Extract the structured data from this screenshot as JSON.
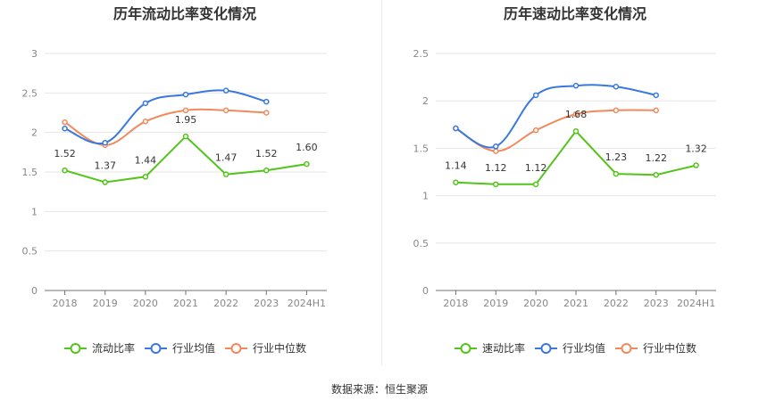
{
  "source_text": "数据来源：恒生聚源",
  "chart_data": [
    {
      "type": "line",
      "title": "历年流动比率变化情况",
      "categories": [
        "2018",
        "2019",
        "2020",
        "2021",
        "2022",
        "2023",
        "2024H1"
      ],
      "y_ticks": [
        "0",
        "0.5",
        "1",
        "1.5",
        "2",
        "2.5",
        "3"
      ],
      "ylim": [
        0,
        3
      ],
      "grid": true,
      "legend_position": "bottom",
      "series": [
        {
          "name": "流动比率",
          "color": "#52c41a",
          "values": [
            1.52,
            1.37,
            1.44,
            1.95,
            1.47,
            1.52,
            1.6
          ],
          "labels": [
            "1.52",
            "1.37",
            "1.44",
            "1.95",
            "1.47",
            "1.52",
            "1.60"
          ]
        },
        {
          "name": "行业均值",
          "color": "#3a78e0",
          "values": [
            2.05,
            1.87,
            2.37,
            2.48,
            2.53,
            2.39,
            null
          ]
        },
        {
          "name": "行业中位数",
          "color": "#f08a5d",
          "values": [
            2.13,
            1.84,
            2.14,
            2.28,
            2.28,
            2.25,
            null
          ]
        }
      ]
    },
    {
      "type": "line",
      "title": "历年速动比率变化情况",
      "categories": [
        "2018",
        "2019",
        "2020",
        "2021",
        "2022",
        "2023",
        "2024H1"
      ],
      "y_ticks": [
        "0",
        "0.5",
        "1",
        "1.5",
        "2",
        "2.5"
      ],
      "ylim": [
        0,
        2.5
      ],
      "grid": true,
      "legend_position": "bottom",
      "series": [
        {
          "name": "速动比率",
          "color": "#52c41a",
          "values": [
            1.14,
            1.12,
            1.12,
            1.68,
            1.23,
            1.22,
            1.32
          ],
          "labels": [
            "1.14",
            "1.12",
            "1.12",
            "1.68",
            "1.23",
            "1.22",
            "1.32"
          ]
        },
        {
          "name": "行业均值",
          "color": "#3a78e0",
          "values": [
            1.71,
            1.52,
            2.06,
            2.16,
            2.15,
            2.06,
            null
          ]
        },
        {
          "name": "行业中位数",
          "color": "#f08a5d",
          "values": [
            1.71,
            1.47,
            1.69,
            1.86,
            1.9,
            1.9,
            null
          ]
        }
      ]
    }
  ]
}
